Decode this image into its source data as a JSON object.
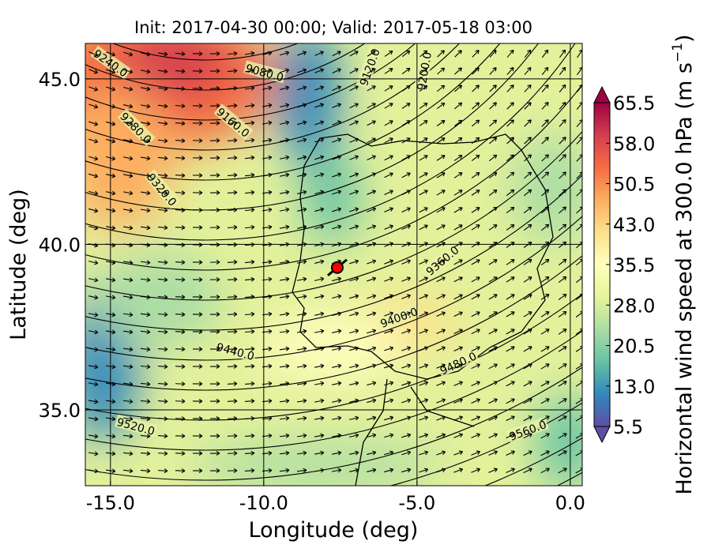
{
  "title": "Init: 2017-04-30 00:00; Valid: 2017-05-18 03:00",
  "x_axis": {
    "label": "Longitude (deg)",
    "lim": [
      -15.82,
      0.39
    ],
    "ticks": [
      {
        "value": -15,
        "label": "-15.0"
      },
      {
        "value": -10,
        "label": "-10.0"
      },
      {
        "value": -5,
        "label": "-5.0"
      },
      {
        "value": 0,
        "label": "0.0"
      }
    ]
  },
  "y_axis": {
    "label": "Latitude (deg)",
    "lim": [
      32.71,
      46.07
    ],
    "ticks": [
      {
        "value": 35,
        "label": "35.0"
      },
      {
        "value": 40,
        "label": "40.0"
      },
      {
        "value": 45,
        "label": "45.0"
      }
    ]
  },
  "colorbar": {
    "label": "Horizontal wind speed at 300.0 hPa (m s",
    "label_exponent": "−1",
    "label_end": ")",
    "lim": [
      5.5,
      65.5
    ],
    "ticks": [
      5.5,
      {
        "value": 13,
        "label": "13.0"
      },
      20.5,
      {
        "value": 28,
        "label": "28.0"
      },
      35.5,
      {
        "value": 43,
        "label": "43.0"
      },
      50.5,
      {
        "value": 58,
        "label": "58.0"
      },
      65.5
    ],
    "colors": [
      "#5e4fa2",
      "#3288bd",
      "#66c2a5",
      "#abdda4",
      "#e6f598",
      "#ffffbf",
      "#fee08b",
      "#fdae61",
      "#f46d43",
      "#d53e4f",
      "#9e0142"
    ]
  },
  "contour_labels": [
    "9240.0",
    "9080.0",
    "9120.0",
    "9200.0",
    "9160.0",
    "9280.0",
    "9320.0",
    "9360.0",
    "9400.0",
    "9440.0",
    "9480.0",
    "9520.0",
    "9560.0"
  ],
  "marker": {
    "lon": -7.6,
    "lat": 39.3,
    "color": "#ff0000"
  }
}
